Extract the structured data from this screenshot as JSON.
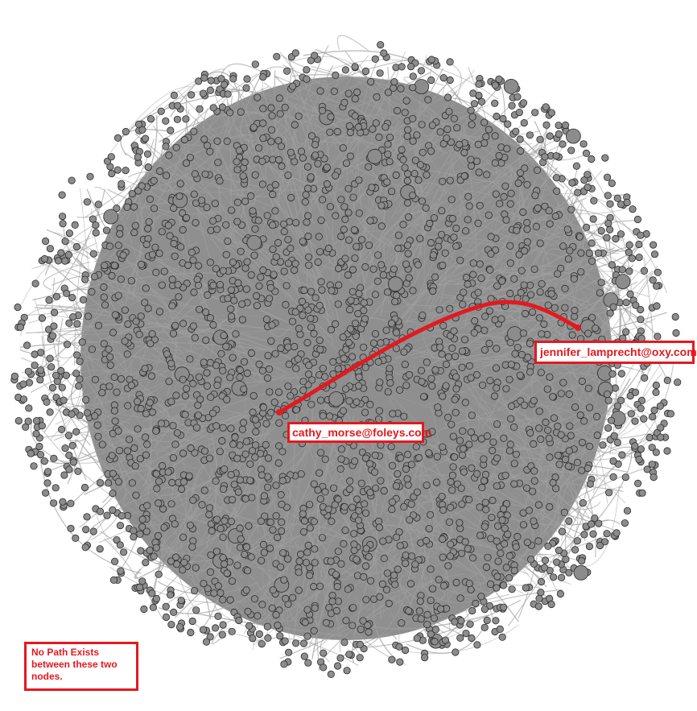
{
  "graph": {
    "edge_color": "#a0a0a0",
    "node_fill": "#8c8c8c",
    "node_stroke": "#2b2b2b",
    "path_color": "#e3191f"
  },
  "nodes": {
    "source_label": "cathy_morse@foleys.com",
    "target_label": "jennifer_lamprecht@oxy.com"
  },
  "note": {
    "text": "No Path Exists between these two nodes."
  }
}
